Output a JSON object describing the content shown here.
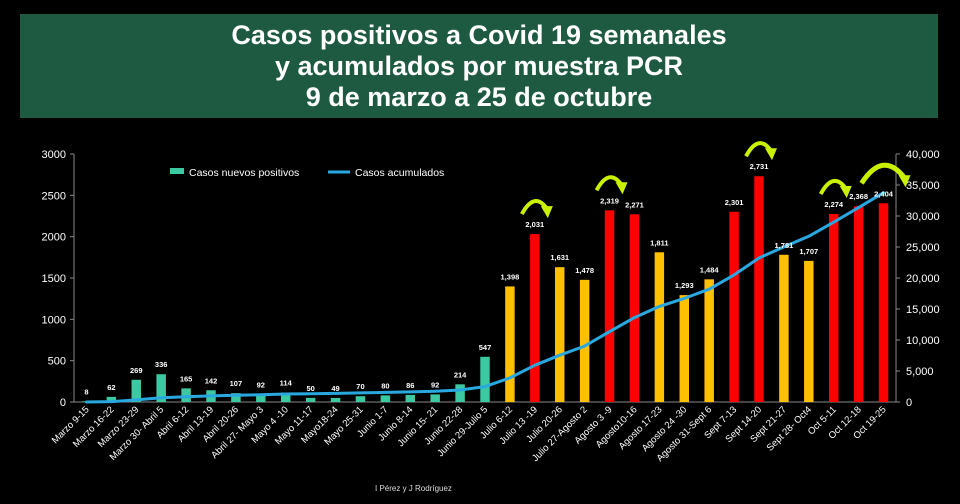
{
  "header": {
    "title_lines": [
      "Casos positivos a Covid 19 semanales",
      "y acumulados por muestra PCR",
      "9 de marzo a 25 de octubre"
    ]
  },
  "credit": "I Pérez y J Rodríguez",
  "colors": {
    "background": "#000000",
    "title_bg": "#1e5a42",
    "teal": "#3cc8a0",
    "yellow": "#ffc000",
    "red": "#ff0000",
    "line": "#29a8e0",
    "arrow": "#c8f000"
  },
  "chart_data": {
    "type": "bar",
    "title": "Casos positivos a Covid 19 semanales y acumulados por muestra PCR 9 de marzo a 25 de octubre",
    "legend_position": "top-left",
    "grid": false,
    "categories": [
      "Marzo 9-15",
      "Marzo 16-22",
      "Marzo 23-29",
      "Marzo 30- Abril 5",
      "Abril 6-12",
      "Abril 13-19",
      "Abril 20-26",
      "Abril 27- Mayo 3",
      "Mayo 4 -10",
      "Mayo 11-17",
      "Mayo18-24",
      "Mayo 25-31",
      "Junio 1-7",
      "Junio 8-14",
      "Junio 15- 21",
      "Junio 22-28",
      "Junio 29-Julio 5",
      "Julio 6-12",
      "Julio 13 -19",
      "Julio 20-26",
      "Julio 27-Agosto 2",
      "Agosto 3 -9",
      "Agosto10-16",
      "Agosto 17-23",
      "Agosto 24 -30",
      "Agosto 31-Sept 6",
      "Sept 7-13",
      "Sept 14-20",
      "Sept 21-27",
      "Sept 28- Oct4",
      "Oct 5-11",
      "Oct 12-18",
      "Oct 19-25"
    ],
    "y_left": {
      "min": 0,
      "max": 3000,
      "ticks": [
        "0",
        "500",
        "1000",
        "1500",
        "2000",
        "2500",
        "3000"
      ]
    },
    "y_right": {
      "min": 0,
      "max": 40000,
      "ticks": [
        "0",
        "5,000",
        "10,000",
        "15,000",
        "20,000",
        "25,000",
        "30,000",
        "35,000",
        "40,000"
      ]
    },
    "series": [
      {
        "name": "Casos nuevos positivos",
        "axis": "left",
        "values": [
          8,
          62,
          269,
          336,
          165,
          142,
          107,
          92,
          114,
          50,
          49,
          70,
          80,
          86,
          92,
          214,
          547,
          1398,
          2031,
          1631,
          1478,
          2319,
          2271,
          1811,
          1293,
          1484,
          2301,
          2731,
          1781,
          1707,
          2274,
          2368,
          2404
        ],
        "labels": [
          "8",
          "62",
          "269",
          "336",
          "165",
          "142",
          "107",
          "92",
          "114",
          "50",
          "49",
          "70",
          "80",
          "86",
          "92",
          "214",
          "547",
          "1,398",
          "2,031",
          "1,631",
          "1,478",
          "2,319",
          "2,271",
          "1,811",
          "1,293",
          "1,484",
          "2,301",
          "2,731",
          "1,781",
          "1,707",
          "2,274",
          "2,368",
          "2,404"
        ],
        "bar_colors": [
          "teal",
          "teal",
          "teal",
          "teal",
          "teal",
          "teal",
          "teal",
          "teal",
          "teal",
          "teal",
          "teal",
          "teal",
          "teal",
          "teal",
          "teal",
          "teal",
          "teal",
          "yellow",
          "red",
          "yellow",
          "yellow",
          "red",
          "red",
          "yellow",
          "yellow",
          "yellow",
          "red",
          "red",
          "yellow",
          "yellow",
          "red",
          "red",
          "red"
        ]
      },
      {
        "name": "Casos acumulados",
        "axis": "right",
        "values": [
          8,
          70,
          339,
          675,
          840,
          982,
          1089,
          1181,
          1295,
          1345,
          1394,
          1464,
          1544,
          1630,
          1722,
          1936,
          2483,
          3881,
          5912,
          7543,
          9021,
          11340,
          13611,
          15422,
          16715,
          18199,
          20500,
          23231,
          25012,
          26719,
          28993,
          31361,
          33765
        ]
      }
    ],
    "arrow_annotations_at": [
      18,
      21,
      27,
      30,
      32
    ]
  }
}
